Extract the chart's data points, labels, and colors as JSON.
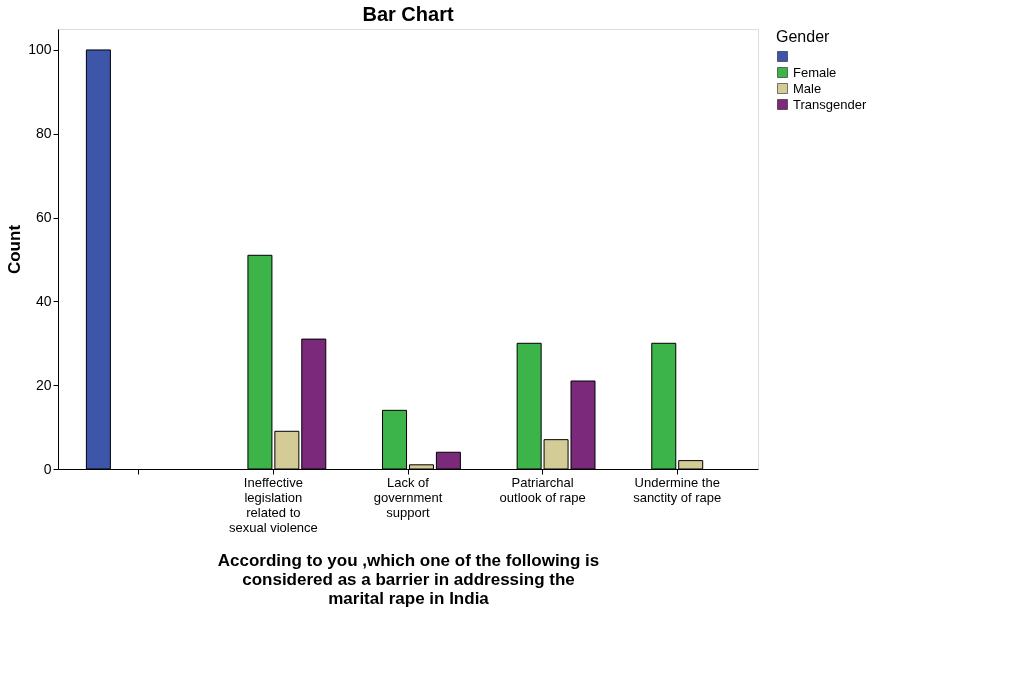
{
  "chart_data": {
    "type": "bar",
    "title": "Bar Chart",
    "xlabel": "According to you ,which one of the following is considered as a barrier in addressing the marital rape in India",
    "ylabel": "Count",
    "legend_title": "Gender",
    "legend": "top right",
    "grid": false,
    "categories": [
      null,
      "Ineffective legislation related to sexual violence",
      "Lack of government support",
      "Patriarchal outlook of rape",
      "Undermine the sanctity of rape"
    ],
    "ylim": [
      0,
      105
    ],
    "yticks": [
      0,
      20,
      40,
      60,
      80,
      100
    ],
    "series": [
      {
        "name": null,
        "color": "#3e56aa",
        "values": [
          100,
          null,
          null,
          null,
          null
        ]
      },
      {
        "name": "Female",
        "color": "#3cb44a",
        "values": [
          null,
          51,
          14,
          30,
          30
        ]
      },
      {
        "name": "Male",
        "color": "#d4cc96",
        "values": [
          null,
          9,
          1,
          7,
          2
        ]
      },
      {
        "name": "Transgender",
        "color": "#7b2a7b",
        "values": [
          null,
          31,
          4,
          21,
          null
        ]
      }
    ]
  }
}
